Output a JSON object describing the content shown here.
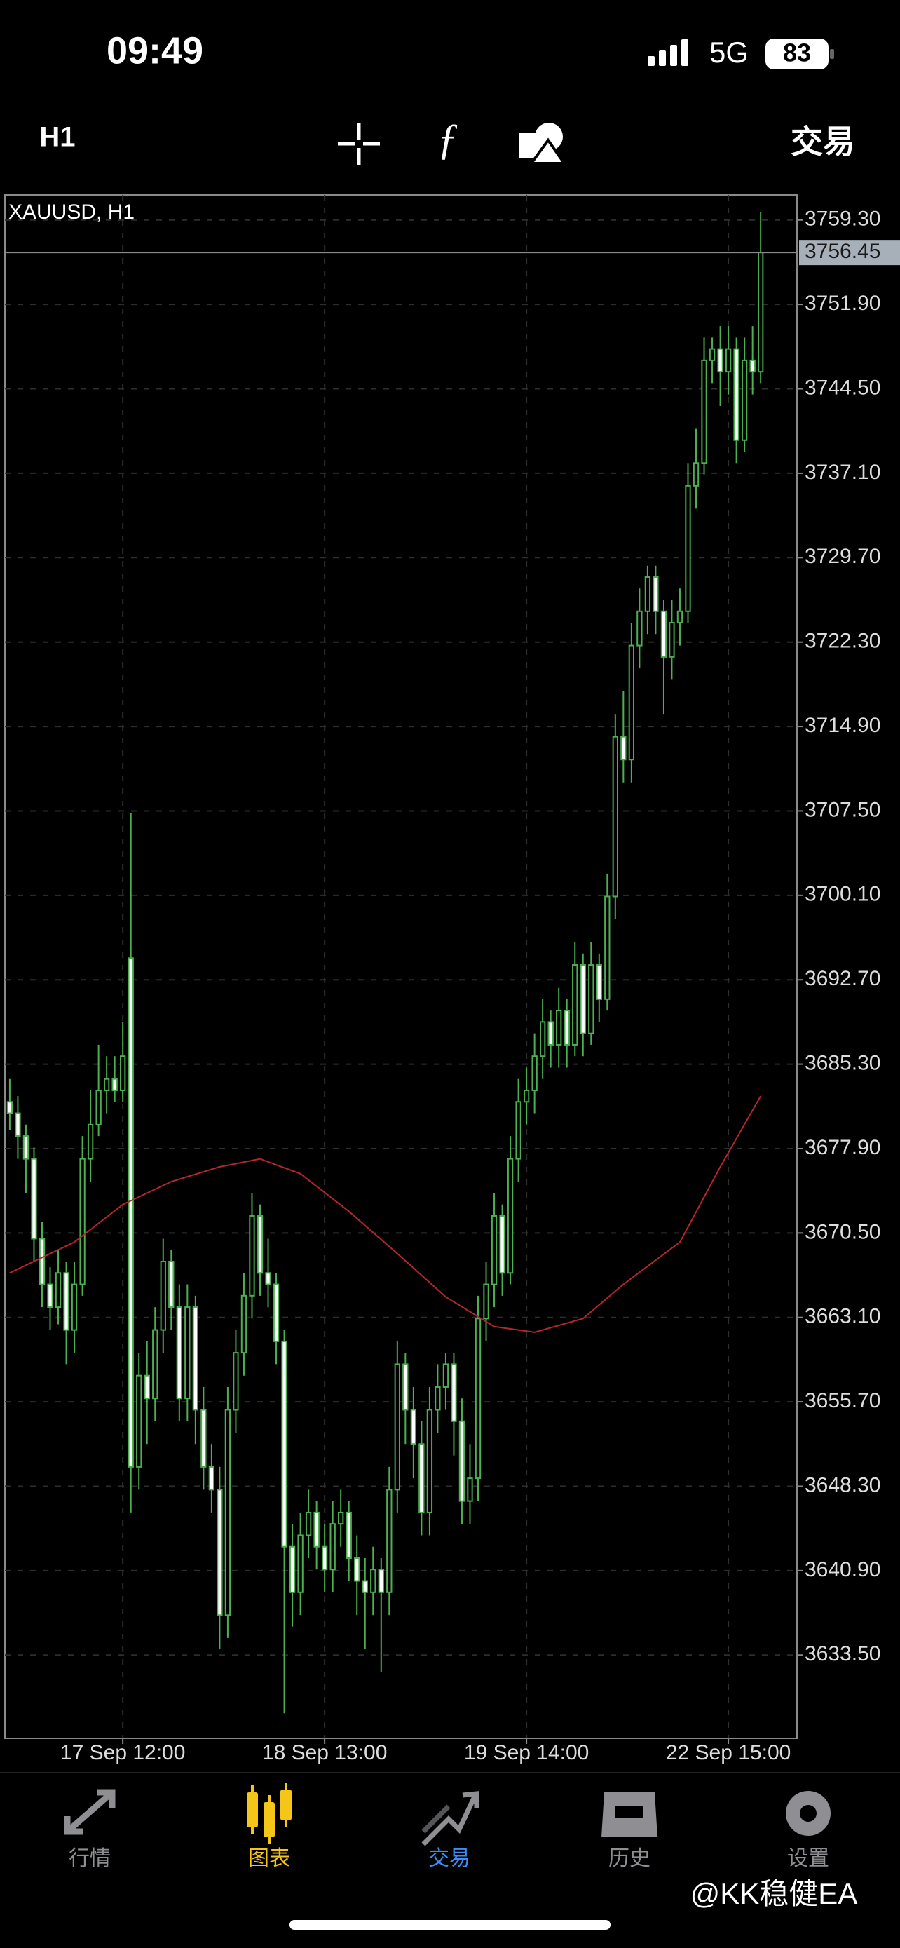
{
  "status_bar": {
    "time": "09:49",
    "network": "5G",
    "battery": 83
  },
  "toolbar": {
    "timeframe": "H1",
    "trade": "交易"
  },
  "chart_data": {
    "type": "candlestick",
    "title": "XAUUSD, H1",
    "candles": [
      [
        3682,
        3684,
        3679.5,
        3681
      ],
      [
        3681,
        3682.5,
        3677,
        3679
      ],
      [
        3679,
        3680,
        3674,
        3677
      ],
      [
        3677,
        3678,
        3668,
        3670
      ],
      [
        3670,
        3671.5,
        3664,
        3666
      ],
      [
        3666,
        3667.5,
        3662,
        3664
      ],
      [
        3664,
        3669,
        3662.5,
        3667
      ],
      [
        3667,
        3668,
        3659,
        3662
      ],
      [
        3662,
        3668,
        3660,
        3666
      ],
      [
        3666,
        3679,
        3665,
        3677
      ],
      [
        3677,
        3683,
        3675,
        3680
      ],
      [
        3680,
        3687,
        3679,
        3683
      ],
      [
        3683,
        3686,
        3681,
        3684
      ],
      [
        3684,
        3686,
        3682,
        3683
      ],
      [
        3683,
        3689,
        3682,
        3686
      ],
      [
        3694.6,
        3707.3,
        3646,
        3650
      ],
      [
        3650,
        3660,
        3648,
        3658
      ],
      [
        3658,
        3661,
        3652,
        3656
      ],
      [
        3656,
        3664,
        3654,
        3662
      ],
      [
        3662,
        3670,
        3660,
        3668
      ],
      [
        3668,
        3669,
        3662,
        3664
      ],
      [
        3664,
        3666,
        3654,
        3656
      ],
      [
        3656,
        3666,
        3654,
        3664
      ],
      [
        3664,
        3665,
        3652,
        3655
      ],
      [
        3655,
        3657,
        3648,
        3650
      ],
      [
        3650,
        3652,
        3646,
        3648
      ],
      [
        3648,
        3650,
        3634,
        3637
      ],
      [
        3637,
        3657,
        3635,
        3655
      ],
      [
        3655,
        3662,
        3653,
        3660
      ],
      [
        3660,
        3667,
        3658,
        3665
      ],
      [
        3665,
        3674,
        3663,
        3672
      ],
      [
        3672,
        3673,
        3665,
        3667
      ],
      [
        3667,
        3670,
        3664,
        3666
      ],
      [
        3666,
        3667,
        3659,
        3661
      ],
      [
        3661,
        3662,
        3628.4,
        3643
      ],
      [
        3643,
        3645,
        3636,
        3639
      ],
      [
        3639,
        3646,
        3637,
        3644
      ],
      [
        3644,
        3648,
        3642,
        3646
      ],
      [
        3646,
        3647,
        3641,
        3643
      ],
      [
        3643,
        3645,
        3639,
        3641
      ],
      [
        3641,
        3647,
        3639,
        3645
      ],
      [
        3645,
        3648,
        3643,
        3646
      ],
      [
        3646,
        3647,
        3640,
        3642
      ],
      [
        3642,
        3644,
        3637,
        3640
      ],
      [
        3640,
        3642,
        3634,
        3639
      ],
      [
        3639,
        3643,
        3637,
        3641
      ],
      [
        3641,
        3642,
        3632,
        3639
      ],
      [
        3639,
        3650,
        3637,
        3648
      ],
      [
        3648,
        3661,
        3646,
        3659
      ],
      [
        3659,
        3660,
        3652,
        3655
      ],
      [
        3655,
        3657,
        3649,
        3652
      ],
      [
        3652,
        3654,
        3644,
        3646
      ],
      [
        3646,
        3657,
        3644,
        3655
      ],
      [
        3655,
        3659,
        3653,
        3657
      ],
      [
        3657,
        3660,
        3655,
        3659
      ],
      [
        3659,
        3660,
        3651,
        3654
      ],
      [
        3654,
        3656,
        3645,
        3647
      ],
      [
        3647,
        3652,
        3645,
        3649
      ],
      [
        3649,
        3665,
        3647,
        3663
      ],
      [
        3663,
        3668,
        3661,
        3666
      ],
      [
        3666,
        3674,
        3664,
        3672
      ],
      [
        3672,
        3673,
        3665,
        3667
      ],
      [
        3667,
        3679,
        3666,
        3677
      ],
      [
        3677,
        3684,
        3675,
        3682
      ],
      [
        3682,
        3685,
        3680,
        3683
      ],
      [
        3683,
        3688,
        3681,
        3686
      ],
      [
        3686,
        3691,
        3684,
        3689
      ],
      [
        3689,
        3690,
        3685,
        3687
      ],
      [
        3687,
        3692,
        3685,
        3690
      ],
      [
        3690,
        3691,
        3685,
        3687
      ],
      [
        3687,
        3696,
        3686,
        3694
      ],
      [
        3694,
        3695,
        3686,
        3688
      ],
      [
        3688,
        3696,
        3687,
        3694
      ],
      [
        3694,
        3695,
        3689,
        3691
      ],
      [
        3691,
        3702,
        3690,
        3700
      ],
      [
        3700,
        3716,
        3698,
        3714
      ],
      [
        3714,
        3718,
        3710,
        3712
      ],
      [
        3712,
        3724,
        3710,
        3722
      ],
      [
        3722,
        3727,
        3720,
        3725
      ],
      [
        3725,
        3729,
        3723,
        3728
      ],
      [
        3728,
        3729,
        3723,
        3725
      ],
      [
        3725,
        3726,
        3716,
        3721
      ],
      [
        3721,
        3726,
        3719,
        3724
      ],
      [
        3724,
        3727,
        3722,
        3725
      ],
      [
        3725,
        3738,
        3724,
        3736
      ],
      [
        3736,
        3741,
        3734,
        3738
      ],
      [
        3738,
        3749,
        3737,
        3747
      ],
      [
        3747,
        3749,
        3745,
        3748
      ],
      [
        3748,
        3750,
        3743,
        3746
      ],
      [
        3746,
        3750,
        3744,
        3748
      ],
      [
        3748,
        3749,
        3738,
        3740
      ],
      [
        3740,
        3749,
        3739,
        3747
      ],
      [
        3747,
        3750,
        3744,
        3746
      ],
      [
        3746,
        3760,
        3745,
        3756.45
      ]
    ],
    "up_color": "#4caf50",
    "down_color": "#ffffff",
    "xlim": [
      -0.6,
      97.5
    ],
    "xticks": [
      {
        "value": 14,
        "label": "17 Sep 12:00"
      },
      {
        "value": 39,
        "label": "18 Sep 13:00"
      },
      {
        "value": 64,
        "label": "19 Sep 14:00"
      },
      {
        "value": 89,
        "label": "22 Sep 15:00"
      }
    ],
    "ylim": [
      3626.2,
      3761.5
    ],
    "yticks": [
      {
        "value": 3759.3,
        "label": "3759.30"
      },
      {
        "value": 3751.9,
        "label": "3751.90"
      },
      {
        "value": 3744.5,
        "label": "3744.50"
      },
      {
        "value": 3737.1,
        "label": "3737.10"
      },
      {
        "value": 3729.7,
        "label": "3729.70"
      },
      {
        "value": 3722.3,
        "label": "3722.30"
      },
      {
        "value": 3714.9,
        "label": "3714.90"
      },
      {
        "value": 3707.5,
        "label": "3707.50"
      },
      {
        "value": 3700.1,
        "label": "3700.10"
      },
      {
        "value": 3692.7,
        "label": "3692.70"
      },
      {
        "value": 3685.3,
        "label": "3685.30"
      },
      {
        "value": 3677.9,
        "label": "3677.90"
      },
      {
        "value": 3670.5,
        "label": "3670.50"
      },
      {
        "value": 3663.1,
        "label": "3663.10"
      },
      {
        "value": 3655.7,
        "label": "3655.70"
      },
      {
        "value": 3648.3,
        "label": "3648.30"
      },
      {
        "value": 3640.9,
        "label": "3640.90"
      },
      {
        "value": 3633.5,
        "label": "3633.50"
      }
    ],
    "last_price": 3756.45,
    "grid": true,
    "indicator": {
      "color": "#b3262a",
      "x": [
        0,
        8,
        14,
        20,
        26,
        31,
        36,
        42,
        48,
        54,
        60,
        65,
        71,
        76,
        83,
        88,
        93
      ],
      "values": [
        3667,
        3669.7,
        3673,
        3675,
        3676.3,
        3677,
        3675.7,
        3672.4,
        3668.7,
        3664.9,
        3662.3,
        3661.8,
        3663,
        3666,
        3669.7,
        3676.3,
        3682.5
      ]
    }
  },
  "tab_bar": {
    "items": [
      "行情",
      "图表",
      "交易",
      "历史",
      "设置"
    ]
  },
  "watermark": "@KK稳健EA"
}
